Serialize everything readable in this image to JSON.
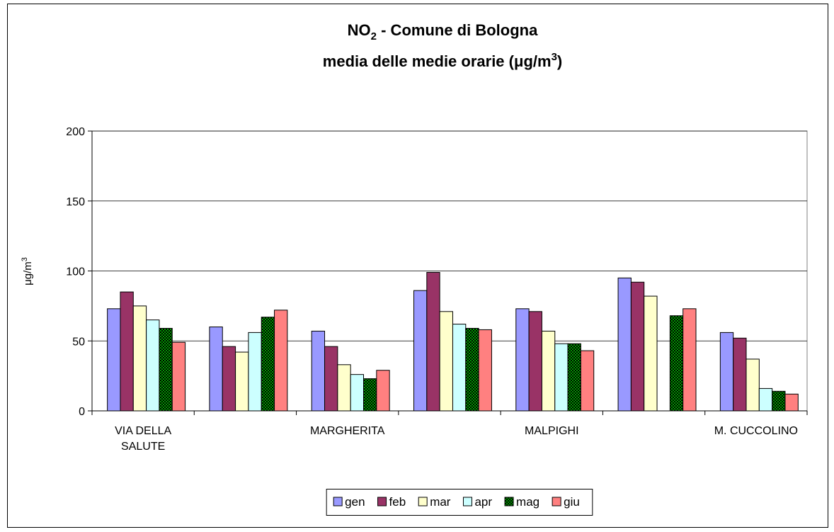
{
  "chart_data": {
    "type": "bar",
    "title": [
      "NO",
      "2",
      " - Comune di Bologna"
    ],
    "subtitle": [
      "media delle medie orarie (μg/m",
      "3",
      ")"
    ],
    "y_label": [
      "μg/m",
      "3"
    ],
    "categories": [
      "VIA DELLA SALUTE",
      null,
      "MARGHERITA",
      null,
      "MALPIGHI",
      null,
      "M. CUCCOLINO"
    ],
    "series": [
      {
        "name": "gen",
        "color": "#9999ff",
        "values": [
          73,
          60,
          57,
          86,
          73,
          95,
          56
        ]
      },
      {
        "name": "feb",
        "color": "#993366",
        "values": [
          85,
          46,
          46,
          99,
          71,
          92,
          52
        ]
      },
      {
        "name": "mar",
        "color": "#ffffcc",
        "values": [
          75,
          42,
          33,
          71,
          57,
          82,
          37
        ]
      },
      {
        "name": "apr",
        "color": "#ccffff",
        "values": [
          65,
          56,
          26,
          62,
          48,
          null,
          16
        ]
      },
      {
        "name": "mag",
        "color": "#00a000",
        "pattern": true,
        "values": [
          59,
          67,
          23,
          59,
          48,
          68,
          14
        ]
      },
      {
        "name": "giu",
        "color": "#ff8080",
        "values": [
          49,
          72,
          29,
          58,
          43,
          73,
          12
        ]
      }
    ],
    "ylim": [
      0,
      200
    ],
    "yticks": [
      0,
      50,
      100,
      150,
      200
    ],
    "grid": true,
    "legend": "bottom"
  }
}
